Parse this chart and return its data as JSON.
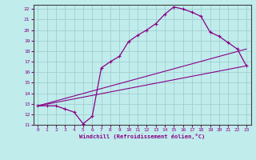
{
  "xlabel": "Windchill (Refroidissement éolien,°C)",
  "bg_color": "#c0ecec",
  "grid_color": "#a0d0d0",
  "line_color": "#880088",
  "spine_color": "#606060",
  "xlim": [
    -0.5,
    23.5
  ],
  "ylim": [
    11,
    22.4
  ],
  "xticks": [
    0,
    1,
    2,
    3,
    4,
    5,
    6,
    7,
    8,
    9,
    10,
    11,
    12,
    13,
    14,
    15,
    16,
    17,
    18,
    19,
    20,
    21,
    22,
    23
  ],
  "yticks": [
    11,
    12,
    13,
    14,
    15,
    16,
    17,
    18,
    19,
    20,
    21,
    22
  ],
  "curve_x": [
    0,
    1,
    2,
    3,
    4,
    5,
    6,
    7,
    8,
    9,
    10,
    11,
    12,
    13,
    14,
    15,
    16,
    17,
    18,
    19,
    20,
    21,
    22,
    23
  ],
  "curve_y": [
    12.8,
    12.8,
    12.8,
    12.5,
    12.2,
    11.1,
    11.8,
    16.4,
    17.0,
    17.5,
    18.9,
    19.5,
    20.0,
    20.6,
    21.5,
    22.2,
    22.0,
    21.7,
    21.3,
    19.8,
    19.4,
    18.8,
    18.2,
    16.6
  ],
  "line1_x": [
    0,
    23
  ],
  "line1_y": [
    12.8,
    16.6
  ],
  "line2_x": [
    0,
    23
  ],
  "line2_y": [
    12.8,
    18.2
  ]
}
